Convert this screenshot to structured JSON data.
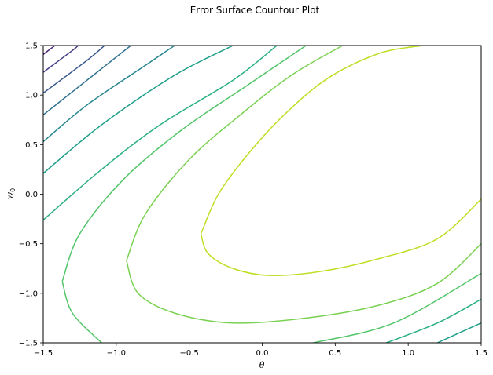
{
  "chart_data": {
    "type": "contour",
    "title": "Error Surface Countour Plot",
    "xlabel": "θ",
    "ylabel_base": "w",
    "ylabel_sub": "0",
    "xlim": [
      -1.5,
      1.5
    ],
    "ylim": [
      -1.5,
      1.5
    ],
    "x_ticks": [
      "−1.5",
      "−1.0",
      "−0.5",
      "0.0",
      "0.5",
      "1.0",
      "1.5"
    ],
    "y_ticks": [
      "−1.5",
      "−1.0",
      "−0.5",
      "0.0",
      "0.5",
      "1.0",
      "1.5"
    ],
    "x_tick_values": [
      -1.5,
      -1.0,
      -0.5,
      0.0,
      0.5,
      1.0,
      1.5
    ],
    "y_tick_values": [
      -1.5,
      -1.0,
      -0.5,
      0.0,
      0.5,
      1.0,
      1.5
    ],
    "colormap": "viridis",
    "contour_lines": [
      {
        "color": "#bddf26",
        "points": [
          [
            -0.42,
            -0.4
          ],
          [
            -0.3,
            0.0
          ],
          [
            -0.1,
            0.4
          ],
          [
            0.15,
            0.8
          ],
          [
            0.45,
            1.17
          ],
          [
            0.8,
            1.42
          ],
          [
            1.1,
            1.5
          ]
        ]
      },
      {
        "color": "#bddf26",
        "points": [
          [
            -0.42,
            -0.4
          ],
          [
            -0.37,
            -0.6
          ],
          [
            -0.2,
            -0.75
          ],
          [
            0.05,
            -0.82
          ],
          [
            0.4,
            -0.78
          ],
          [
            0.8,
            -0.65
          ],
          [
            1.2,
            -0.45
          ],
          [
            1.5,
            -0.05
          ]
        ]
      },
      {
        "color": "#7ad151",
        "points": [
          [
            -0.93,
            -0.67
          ],
          [
            -0.8,
            -0.2
          ],
          [
            -0.5,
            0.35
          ],
          [
            -0.15,
            0.8
          ],
          [
            0.2,
            1.2
          ],
          [
            0.55,
            1.5
          ]
        ]
      },
      {
        "color": "#7ad151",
        "points": [
          [
            -0.93,
            -0.67
          ],
          [
            -0.85,
            -1.0
          ],
          [
            -0.6,
            -1.2
          ],
          [
            -0.2,
            -1.3
          ],
          [
            0.3,
            -1.25
          ],
          [
            0.8,
            -1.12
          ],
          [
            1.2,
            -0.9
          ],
          [
            1.5,
            -0.5
          ]
        ]
      },
      {
        "color": "#52c569",
        "points": [
          [
            -1.37,
            -0.88
          ],
          [
            -1.25,
            -0.4
          ],
          [
            -0.95,
            0.15
          ],
          [
            -0.55,
            0.65
          ],
          [
            -0.1,
            1.1
          ],
          [
            0.3,
            1.5
          ]
        ]
      },
      {
        "color": "#52c569",
        "points": [
          [
            -1.37,
            -0.88
          ],
          [
            -1.3,
            -1.2
          ],
          [
            -1.1,
            -1.5
          ]
        ]
      },
      {
        "color": "#52c569",
        "points": [
          [
            0.35,
            -1.5
          ],
          [
            0.9,
            -1.3
          ],
          [
            1.5,
            -0.8
          ]
        ]
      },
      {
        "color": "#2ab07f",
        "points": [
          [
            -1.5,
            -0.26
          ],
          [
            -1.1,
            0.25
          ],
          [
            -0.7,
            0.7
          ],
          [
            -0.2,
            1.15
          ],
          [
            0.1,
            1.5
          ]
        ]
      },
      {
        "color": "#2ab07f",
        "points": [
          [
            0.85,
            -1.5
          ],
          [
            1.2,
            -1.3
          ],
          [
            1.5,
            -1.06
          ]
        ]
      },
      {
        "color": "#1f9e89",
        "points": [
          [
            -1.5,
            0.21
          ],
          [
            -1.1,
            0.7
          ],
          [
            -0.6,
            1.2
          ],
          [
            -0.2,
            1.5
          ]
        ]
      },
      {
        "color": "#1f9e89",
        "points": [
          [
            1.2,
            -1.5
          ],
          [
            1.5,
            -1.3
          ]
        ]
      },
      {
        "color": "#25858e",
        "points": [
          [
            -1.5,
            0.53
          ],
          [
            -1.2,
            0.9
          ],
          [
            -0.8,
            1.3
          ],
          [
            -0.6,
            1.5
          ]
        ]
      },
      {
        "color": "#2d708e",
        "points": [
          [
            -1.5,
            0.8
          ],
          [
            -1.2,
            1.15
          ],
          [
            -0.9,
            1.5
          ]
        ]
      },
      {
        "color": "#38588c",
        "points": [
          [
            -1.5,
            1.02
          ],
          [
            -1.2,
            1.35
          ],
          [
            -1.08,
            1.5
          ]
        ]
      },
      {
        "color": "#433e85",
        "points": [
          [
            -1.5,
            1.23
          ],
          [
            -1.3,
            1.45
          ],
          [
            -1.26,
            1.5
          ]
        ]
      },
      {
        "color": "#482173",
        "points": [
          [
            -1.5,
            1.41
          ],
          [
            -1.42,
            1.5
          ]
        ]
      }
    ]
  }
}
